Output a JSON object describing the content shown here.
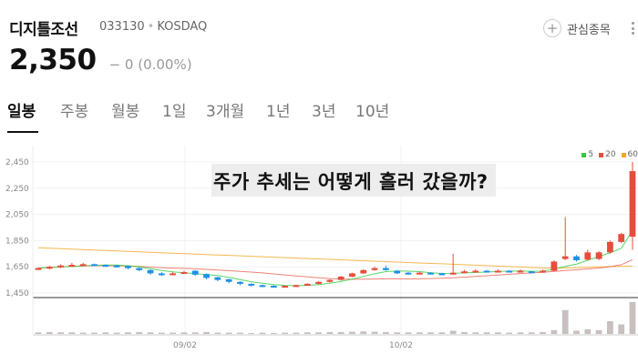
{
  "stock": {
    "name": "디지틀조선",
    "code": "033130",
    "market": "KOSDAQ",
    "price": "2,350",
    "change": "− 0 (0.00%)"
  },
  "header": {
    "watch_label": "관심종목",
    "plus_icon": "plus-icon",
    "more_icon": "more-vertical-icon"
  },
  "tabs": [
    "일봉",
    "주봉",
    "월봉",
    "1일",
    "3개월",
    "1년",
    "3년",
    "10년"
  ],
  "overlay_text": "주가 추세는 어떻게 흘러 갔을까?",
  "chart_data": {
    "type": "candlestick",
    "y_ticks": [
      2450,
      2250,
      2050,
      1850,
      1650,
      1450
    ],
    "x_ticks": [
      "09/02",
      "10/02"
    ],
    "ylim": [
      1450,
      2450
    ],
    "legend": [
      {
        "label": "5",
        "color": "#2ecc40"
      },
      {
        "label": "20",
        "color": "#e74c3c"
      },
      {
        "label": "60",
        "color": "#f5a623"
      }
    ],
    "up_color": "#e74c3c",
    "down_color": "#1e90e6",
    "candles": [
      [
        1630,
        1640,
        1645,
        1625
      ],
      [
        1640,
        1650,
        1660,
        1630
      ],
      [
        1650,
        1660,
        1670,
        1640
      ],
      [
        1660,
        1665,
        1680,
        1650
      ],
      [
        1665,
        1670,
        1680,
        1660
      ],
      [
        1670,
        1665,
        1675,
        1655
      ],
      [
        1665,
        1660,
        1670,
        1650
      ],
      [
        1660,
        1655,
        1665,
        1645
      ],
      [
        1655,
        1640,
        1660,
        1630
      ],
      [
        1640,
        1625,
        1645,
        1615
      ],
      [
        1625,
        1600,
        1630,
        1590
      ],
      [
        1600,
        1590,
        1610,
        1580
      ],
      [
        1590,
        1600,
        1610,
        1585
      ],
      [
        1600,
        1610,
        1620,
        1595
      ],
      [
        1620,
        1590,
        1625,
        1580
      ],
      [
        1595,
        1565,
        1600,
        1555
      ],
      [
        1570,
        1550,
        1575,
        1540
      ],
      [
        1555,
        1535,
        1560,
        1525
      ],
      [
        1535,
        1520,
        1540,
        1510
      ],
      [
        1520,
        1510,
        1525,
        1500
      ],
      [
        1510,
        1505,
        1515,
        1495
      ],
      [
        1505,
        1500,
        1510,
        1495
      ],
      [
        1500,
        1505,
        1510,
        1495
      ],
      [
        1505,
        1510,
        1515,
        1500
      ],
      [
        1510,
        1520,
        1525,
        1505
      ],
      [
        1520,
        1535,
        1540,
        1515
      ],
      [
        1535,
        1550,
        1555,
        1530
      ],
      [
        1550,
        1575,
        1580,
        1545
      ],
      [
        1575,
        1600,
        1605,
        1570
      ],
      [
        1600,
        1625,
        1630,
        1595
      ],
      [
        1625,
        1640,
        1650,
        1620
      ],
      [
        1640,
        1625,
        1660,
        1620
      ],
      [
        1620,
        1600,
        1625,
        1595
      ],
      [
        1605,
        1595,
        1610,
        1590
      ],
      [
        1600,
        1605,
        1610,
        1595
      ],
      [
        1605,
        1600,
        1610,
        1595
      ],
      [
        1600,
        1595,
        1605,
        1590
      ],
      [
        1595,
        1605,
        1750,
        1590
      ],
      [
        1605,
        1615,
        1625,
        1600
      ],
      [
        1615,
        1620,
        1630,
        1610
      ],
      [
        1620,
        1615,
        1625,
        1610
      ],
      [
        1615,
        1620,
        1630,
        1610
      ],
      [
        1620,
        1615,
        1625,
        1610
      ],
      [
        1615,
        1620,
        1630,
        1610
      ],
      [
        1615,
        1610,
        1620,
        1605
      ],
      [
        1610,
        1620,
        1630,
        1605
      ],
      [
        1620,
        1690,
        1700,
        1615
      ],
      [
        1710,
        1730,
        2030,
        1700
      ],
      [
        1730,
        1700,
        1740,
        1690
      ],
      [
        1705,
        1760,
        1780,
        1700
      ],
      [
        1710,
        1760,
        1770,
        1700
      ],
      [
        1760,
        1840,
        1850,
        1750
      ],
      [
        1840,
        1900,
        1910,
        1830
      ],
      [
        1880,
        2380,
        2450,
        1780
      ]
    ],
    "volumes": [
      0.05,
      0.06,
      0.05,
      0.05,
      0.04,
      0.04,
      0.05,
      0.04,
      0.05,
      0.06,
      0.05,
      0.04,
      0.04,
      0.05,
      0.05,
      0.06,
      0.04,
      0.04,
      0.04,
      0.03,
      0.04,
      0.03,
      0.04,
      0.04,
      0.05,
      0.05,
      0.06,
      0.06,
      0.07,
      0.08,
      0.07,
      0.06,
      0.05,
      0.05,
      0.05,
      0.05,
      0.05,
      0.1,
      0.06,
      0.05,
      0.05,
      0.05,
      0.04,
      0.05,
      0.05,
      0.06,
      0.12,
      0.75,
      0.1,
      0.15,
      0.12,
      0.4,
      0.3,
      1.0
    ]
  }
}
